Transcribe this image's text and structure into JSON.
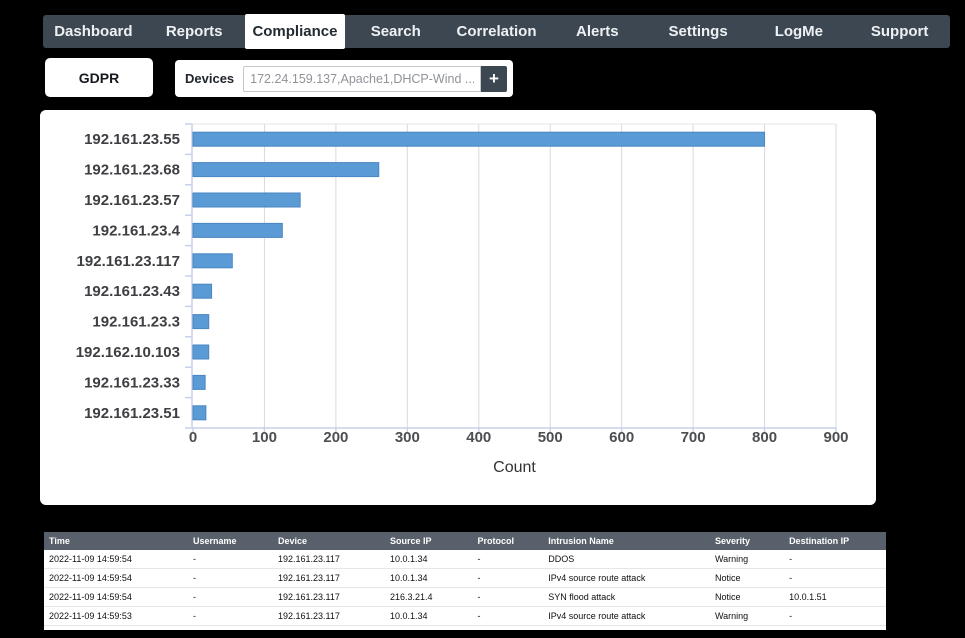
{
  "nav": {
    "items": [
      {
        "label": "Dashboard",
        "active": false
      },
      {
        "label": "Reports",
        "active": false
      },
      {
        "label": "Compliance",
        "active": true
      },
      {
        "label": "Search",
        "active": false
      },
      {
        "label": "Correlation",
        "active": false
      },
      {
        "label": "Alerts",
        "active": false
      },
      {
        "label": "Settings",
        "active": false
      },
      {
        "label": "LogMe",
        "active": false
      },
      {
        "label": "Support",
        "active": false
      }
    ]
  },
  "filters": {
    "report_label": "GDPR",
    "devices_label": "Devices",
    "devices_value": "172.24.159.137,Apache1,DHCP-Wind ...",
    "add_device_label": "+"
  },
  "chart_data": {
    "type": "bar",
    "orientation": "horizontal",
    "categories": [
      "192.161.23.55",
      "192.161.23.68",
      "192.161.23.57",
      "192.161.23.4",
      "192.161.23.117",
      "192.161.23.43",
      "192.161.23.3",
      "192.162.10.103",
      "192.161.23.33",
      "192.161.23.51"
    ],
    "values": [
      800,
      260,
      150,
      125,
      55,
      26,
      22,
      22,
      17,
      18
    ],
    "title": "",
    "xlabel": "Count",
    "ylabel": "",
    "xlim": [
      0,
      900
    ],
    "xticks": [
      0,
      100,
      200,
      300,
      400,
      500,
      600,
      700,
      800,
      900
    ],
    "grid": true,
    "legend_position": "none",
    "bar_color": "#5b9bd5",
    "bar_border_color": "#4a86c2"
  },
  "table": {
    "columns": [
      "Time",
      "Username",
      "Device",
      "Source IP",
      "Protocol",
      "Intrusion Name",
      "Severity",
      "Destination IP"
    ],
    "rows": [
      [
        "2022-11-09 14:59:54",
        "-",
        "192.161.23.117",
        "10.0.1.34",
        "-",
        "DDOS",
        "Warning",
        "-"
      ],
      [
        "2022-11-09 14:59:54",
        "-",
        "192.161.23.117",
        "10.0.1.34",
        "-",
        "IPv4 source route attack",
        "Notice",
        "-"
      ],
      [
        "2022-11-09 14:59:54",
        "-",
        "192.161.23.117",
        "216.3.21.4",
        "-",
        "SYN flood attack",
        "Notice",
        "10.0.1.51"
      ],
      [
        "2022-11-09 14:59:53",
        "-",
        "192.161.23.117",
        "10.0.1.34",
        "-",
        "IPv4 source route attack",
        "Warning",
        "-"
      ]
    ]
  },
  "colors": {
    "page_bg": "#000000",
    "navbar_bg": "#3d4752",
    "active_tab_bg": "#ffffff",
    "active_tab_text": "#222b33",
    "nav_text": "#eef1f4",
    "bar_fill": "#5b9bd5",
    "bar_stroke": "#4a86c2",
    "gridline": "#d9d9d9",
    "axis_line": "#c7d0e8",
    "table_header_bg": "#58616b"
  }
}
